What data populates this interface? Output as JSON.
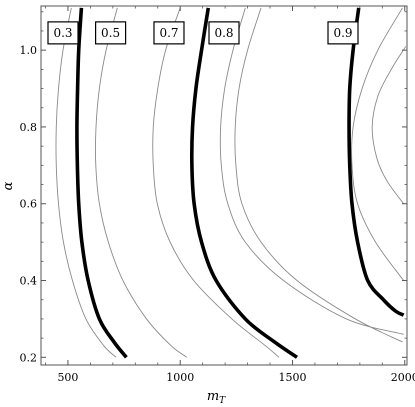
{
  "chart_data": {
    "type": "line",
    "title": "",
    "xlabel": "m",
    "xlabel_sub": "T",
    "ylabel": "α",
    "xlim": [
      380,
      2010
    ],
    "ylim": [
      0.18,
      1.115
    ],
    "x_ticks": [
      {
        "value": 500,
        "label": "500"
      },
      {
        "value": 1000,
        "label": "1000"
      },
      {
        "value": 1500,
        "label": "1500"
      },
      {
        "value": 2000,
        "label": "2000"
      }
    ],
    "y_ticks": [
      {
        "value": 0.2,
        "label": "0.2"
      },
      {
        "value": 0.4,
        "label": "0.4"
      },
      {
        "value": 0.6,
        "label": "0.6"
      },
      {
        "value": 0.8,
        "label": "0.8"
      },
      {
        "value": 1.0,
        "label": "1.0"
      }
    ],
    "grid": false,
    "legend": "none",
    "contour_labels": [
      {
        "text": "0.3",
        "x": 478,
        "y": 1.045
      },
      {
        "text": "0.5",
        "x": 690,
        "y": 1.045
      },
      {
        "text": "0.7",
        "x": 950,
        "y": 1.045
      },
      {
        "text": "0.8",
        "x": 1195,
        "y": 1.045
      },
      {
        "text": "0.9",
        "x": 1725,
        "y": 1.045
      }
    ],
    "thick_series": [
      {
        "x": [
          560,
          548,
          543,
          540,
          542,
          548,
          562,
          590,
          640,
          705,
          760
        ],
        "y": [
          1.11,
          1.0,
          0.9,
          0.8,
          0.7,
          0.6,
          0.5,
          0.4,
          0.3,
          0.24,
          0.2
        ]
      },
      {
        "x": [
          1125,
          1095,
          1070,
          1055,
          1052,
          1062,
          1095,
          1160,
          1290,
          1420,
          1520
        ],
        "y": [
          1.11,
          1.0,
          0.9,
          0.8,
          0.7,
          0.6,
          0.5,
          0.4,
          0.3,
          0.24,
          0.2
        ]
      },
      {
        "x": [
          1795,
          1770,
          1755,
          1752,
          1755,
          1765,
          1790,
          1835,
          1905,
          1960,
          1995
        ],
        "y": [
          1.11,
          1.0,
          0.9,
          0.8,
          0.7,
          0.6,
          0.5,
          0.4,
          0.35,
          0.32,
          0.31
        ]
      }
    ],
    "thin_series": [
      {
        "x": [
          515,
          478,
          458,
          448,
          448,
          458,
          480,
          520,
          580,
          660,
          715
        ],
        "y": [
          1.11,
          1.0,
          0.9,
          0.8,
          0.7,
          0.6,
          0.5,
          0.4,
          0.3,
          0.23,
          0.2
        ]
      },
      {
        "x": [
          720,
          670,
          640,
          625,
          624,
          640,
          680,
          745,
          850,
          960,
          1030
        ],
        "y": [
          1.11,
          1.0,
          0.9,
          0.8,
          0.7,
          0.6,
          0.5,
          0.4,
          0.3,
          0.23,
          0.2
        ]
      },
      {
        "x": [
          1000,
          935,
          900,
          880,
          880,
          898,
          955,
          1060,
          1230,
          1380,
          1440
        ],
        "y": [
          1.11,
          1.0,
          0.9,
          0.8,
          0.7,
          0.6,
          0.5,
          0.4,
          0.3,
          0.23,
          0.2
        ]
      },
      {
        "x": [
          1360,
          1300,
          1262,
          1245,
          1248,
          1275,
          1360,
          1520,
          1780,
          1990
        ],
        "y": [
          1.11,
          1.0,
          0.9,
          0.8,
          0.7,
          0.6,
          0.5,
          0.4,
          0.3,
          0.24
        ]
      },
      {
        "x": [
          1290,
          1235,
          1198,
          1180,
          1183,
          1212,
          1290,
          1460,
          1740,
          1995
        ],
        "y": [
          1.11,
          1.0,
          0.9,
          0.8,
          0.7,
          0.6,
          0.5,
          0.4,
          0.3,
          0.26
        ]
      },
      {
        "x": [
          1990,
          1880,
          1810,
          1770,
          1765,
          1790,
          1870,
          1995
        ],
        "y": [
          1.11,
          1.0,
          0.9,
          0.8,
          0.7,
          0.6,
          0.5,
          0.4
        ]
      },
      {
        "x": [
          2005,
          1940,
          1880,
          1855,
          1875,
          1920,
          1995
        ],
        "y": [
          1.01,
          0.95,
          0.88,
          0.8,
          0.72,
          0.66,
          0.6
        ]
      }
    ]
  }
}
